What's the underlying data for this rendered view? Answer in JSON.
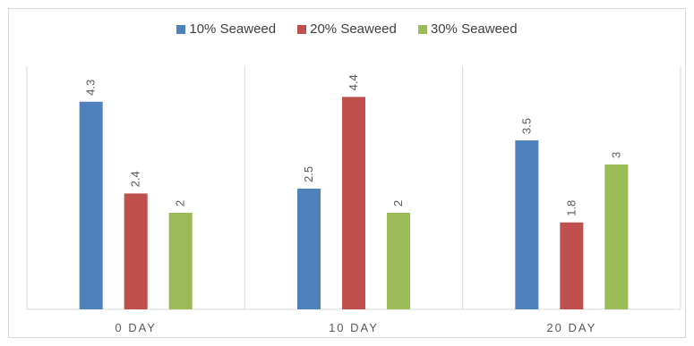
{
  "chart_data": {
    "type": "bar",
    "categories": [
      "0 DAY",
      "10 DAY",
      "20 DAY"
    ],
    "series": [
      {
        "name": "10% Seaweed",
        "values": [
          4.3,
          2.5,
          3.5
        ],
        "color": "#4f81bd"
      },
      {
        "name": "20% Seaweed",
        "values": [
          2.4,
          4.4,
          1.8
        ],
        "color": "#c0504d"
      },
      {
        "name": "30% Seaweed",
        "values": [
          2,
          2,
          3
        ],
        "color": "#9bbb59"
      }
    ],
    "data_labels": [
      [
        "4.3",
        "2.5",
        "3.5"
      ],
      [
        "2.4",
        "4.4",
        "1.8"
      ],
      [
        "2",
        "2",
        "3"
      ]
    ],
    "title": "",
    "xlabel": "",
    "ylabel": "",
    "ylim": [
      0,
      5
    ],
    "legend_position": "top",
    "grid": false,
    "category_separators": true
  }
}
